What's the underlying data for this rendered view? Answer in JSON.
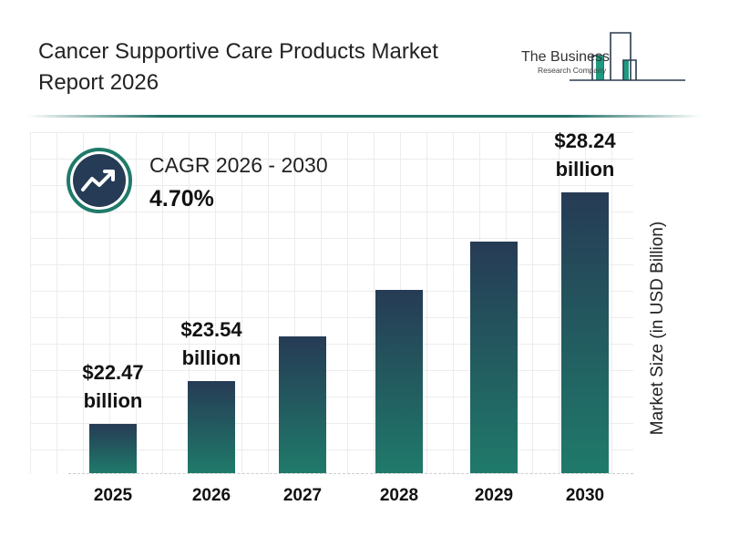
{
  "header": {
    "title": "Cancer Supportive Care Products Market Report 2026"
  },
  "logo": {
    "line1": "The Business",
    "line2": "Research Company"
  },
  "cagr": {
    "label": "CAGR 2026 - 2030",
    "value": "4.70%",
    "icon": "trending-up-icon"
  },
  "chart_data": {
    "type": "bar",
    "categories": [
      "2025",
      "2026",
      "2027",
      "2028",
      "2029",
      "2030"
    ],
    "values": [
      22.47,
      23.54,
      24.65,
      25.81,
      27.02,
      28.24
    ],
    "data_labels": [
      {
        "index": 0,
        "value": "$22.47",
        "unit": "billion"
      },
      {
        "index": 1,
        "value": "$23.54",
        "unit": "billion"
      },
      {
        "index": 5,
        "value": "$28.24",
        "unit": "billion"
      }
    ],
    "ylabel": "Market Size (in USD Billion)",
    "xlabel": "",
    "grid": true,
    "colors": {
      "bar_top": "#263b55",
      "bar_bottom": "#1f7a6a",
      "accent": "#1f7a6a"
    }
  }
}
